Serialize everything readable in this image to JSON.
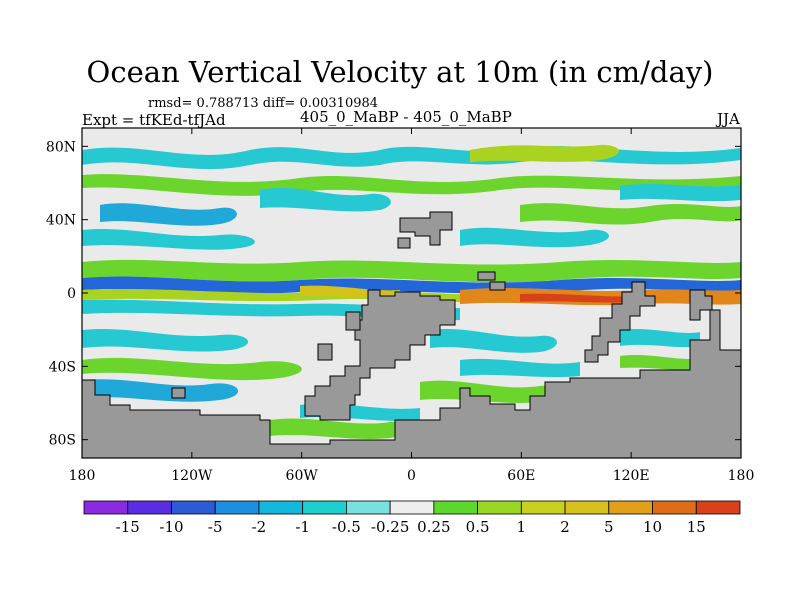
{
  "header": {
    "title": "Ocean Vertical Velocity at 10m (in cm/day)",
    "stats": "rmsd= 0.788713  diff= 0.00310984",
    "left_label": "Expt = tfKEd-tfJAd",
    "center_label": "405_0_MaBP - 405_0_MaBP",
    "right_label": "JJA"
  },
  "map": {
    "lon_range": [
      -180,
      180
    ],
    "lat_range": [
      -90,
      90
    ],
    "y_ticks": [
      {
        "lat": 80,
        "label": "80N"
      },
      {
        "lat": 40,
        "label": "40N"
      },
      {
        "lat": 0,
        "label": "0"
      },
      {
        "lat": -40,
        "label": "40S"
      },
      {
        "lat": -80,
        "label": "80S"
      }
    ],
    "x_ticks": [
      {
        "lon": -180,
        "label": "180"
      },
      {
        "lon": -120,
        "label": "120W"
      },
      {
        "lon": -60,
        "label": "60W"
      },
      {
        "lon": 0,
        "label": "0"
      },
      {
        "lon": 60,
        "label": "60E"
      },
      {
        "lon": 120,
        "label": "120E"
      },
      {
        "lon": 180,
        "label": "180"
      }
    ],
    "colors": {
      "land": "#999999",
      "ocean_neutral": "#eaeaea",
      "cyan_light": "#26c8d2",
      "cyan_dark": "#1fa8d8",
      "blue": "#2366d8",
      "green": "#6bd52e",
      "yellow_green": "#a9d320",
      "yellow": "#d4c21a",
      "orange": "#e0861a",
      "red": "#d8421b"
    }
  },
  "colorbar": {
    "colors": [
      "#8a2be2",
      "#5a2ee0",
      "#2d5bd8",
      "#1e8fe0",
      "#14b8dc",
      "#1ecfd0",
      "#78e0de",
      "#eeeeee",
      "#5cd82c",
      "#9ad624",
      "#c9cf1e",
      "#d8c01c",
      "#e0a01a",
      "#e06c1a",
      "#d8421b"
    ],
    "labels": [
      "-15",
      "-10",
      "-5",
      "-2",
      "-1",
      "-0.5",
      "-0.25",
      "0.25",
      "0.5",
      "1",
      "2",
      "5",
      "10",
      "15"
    ]
  }
}
